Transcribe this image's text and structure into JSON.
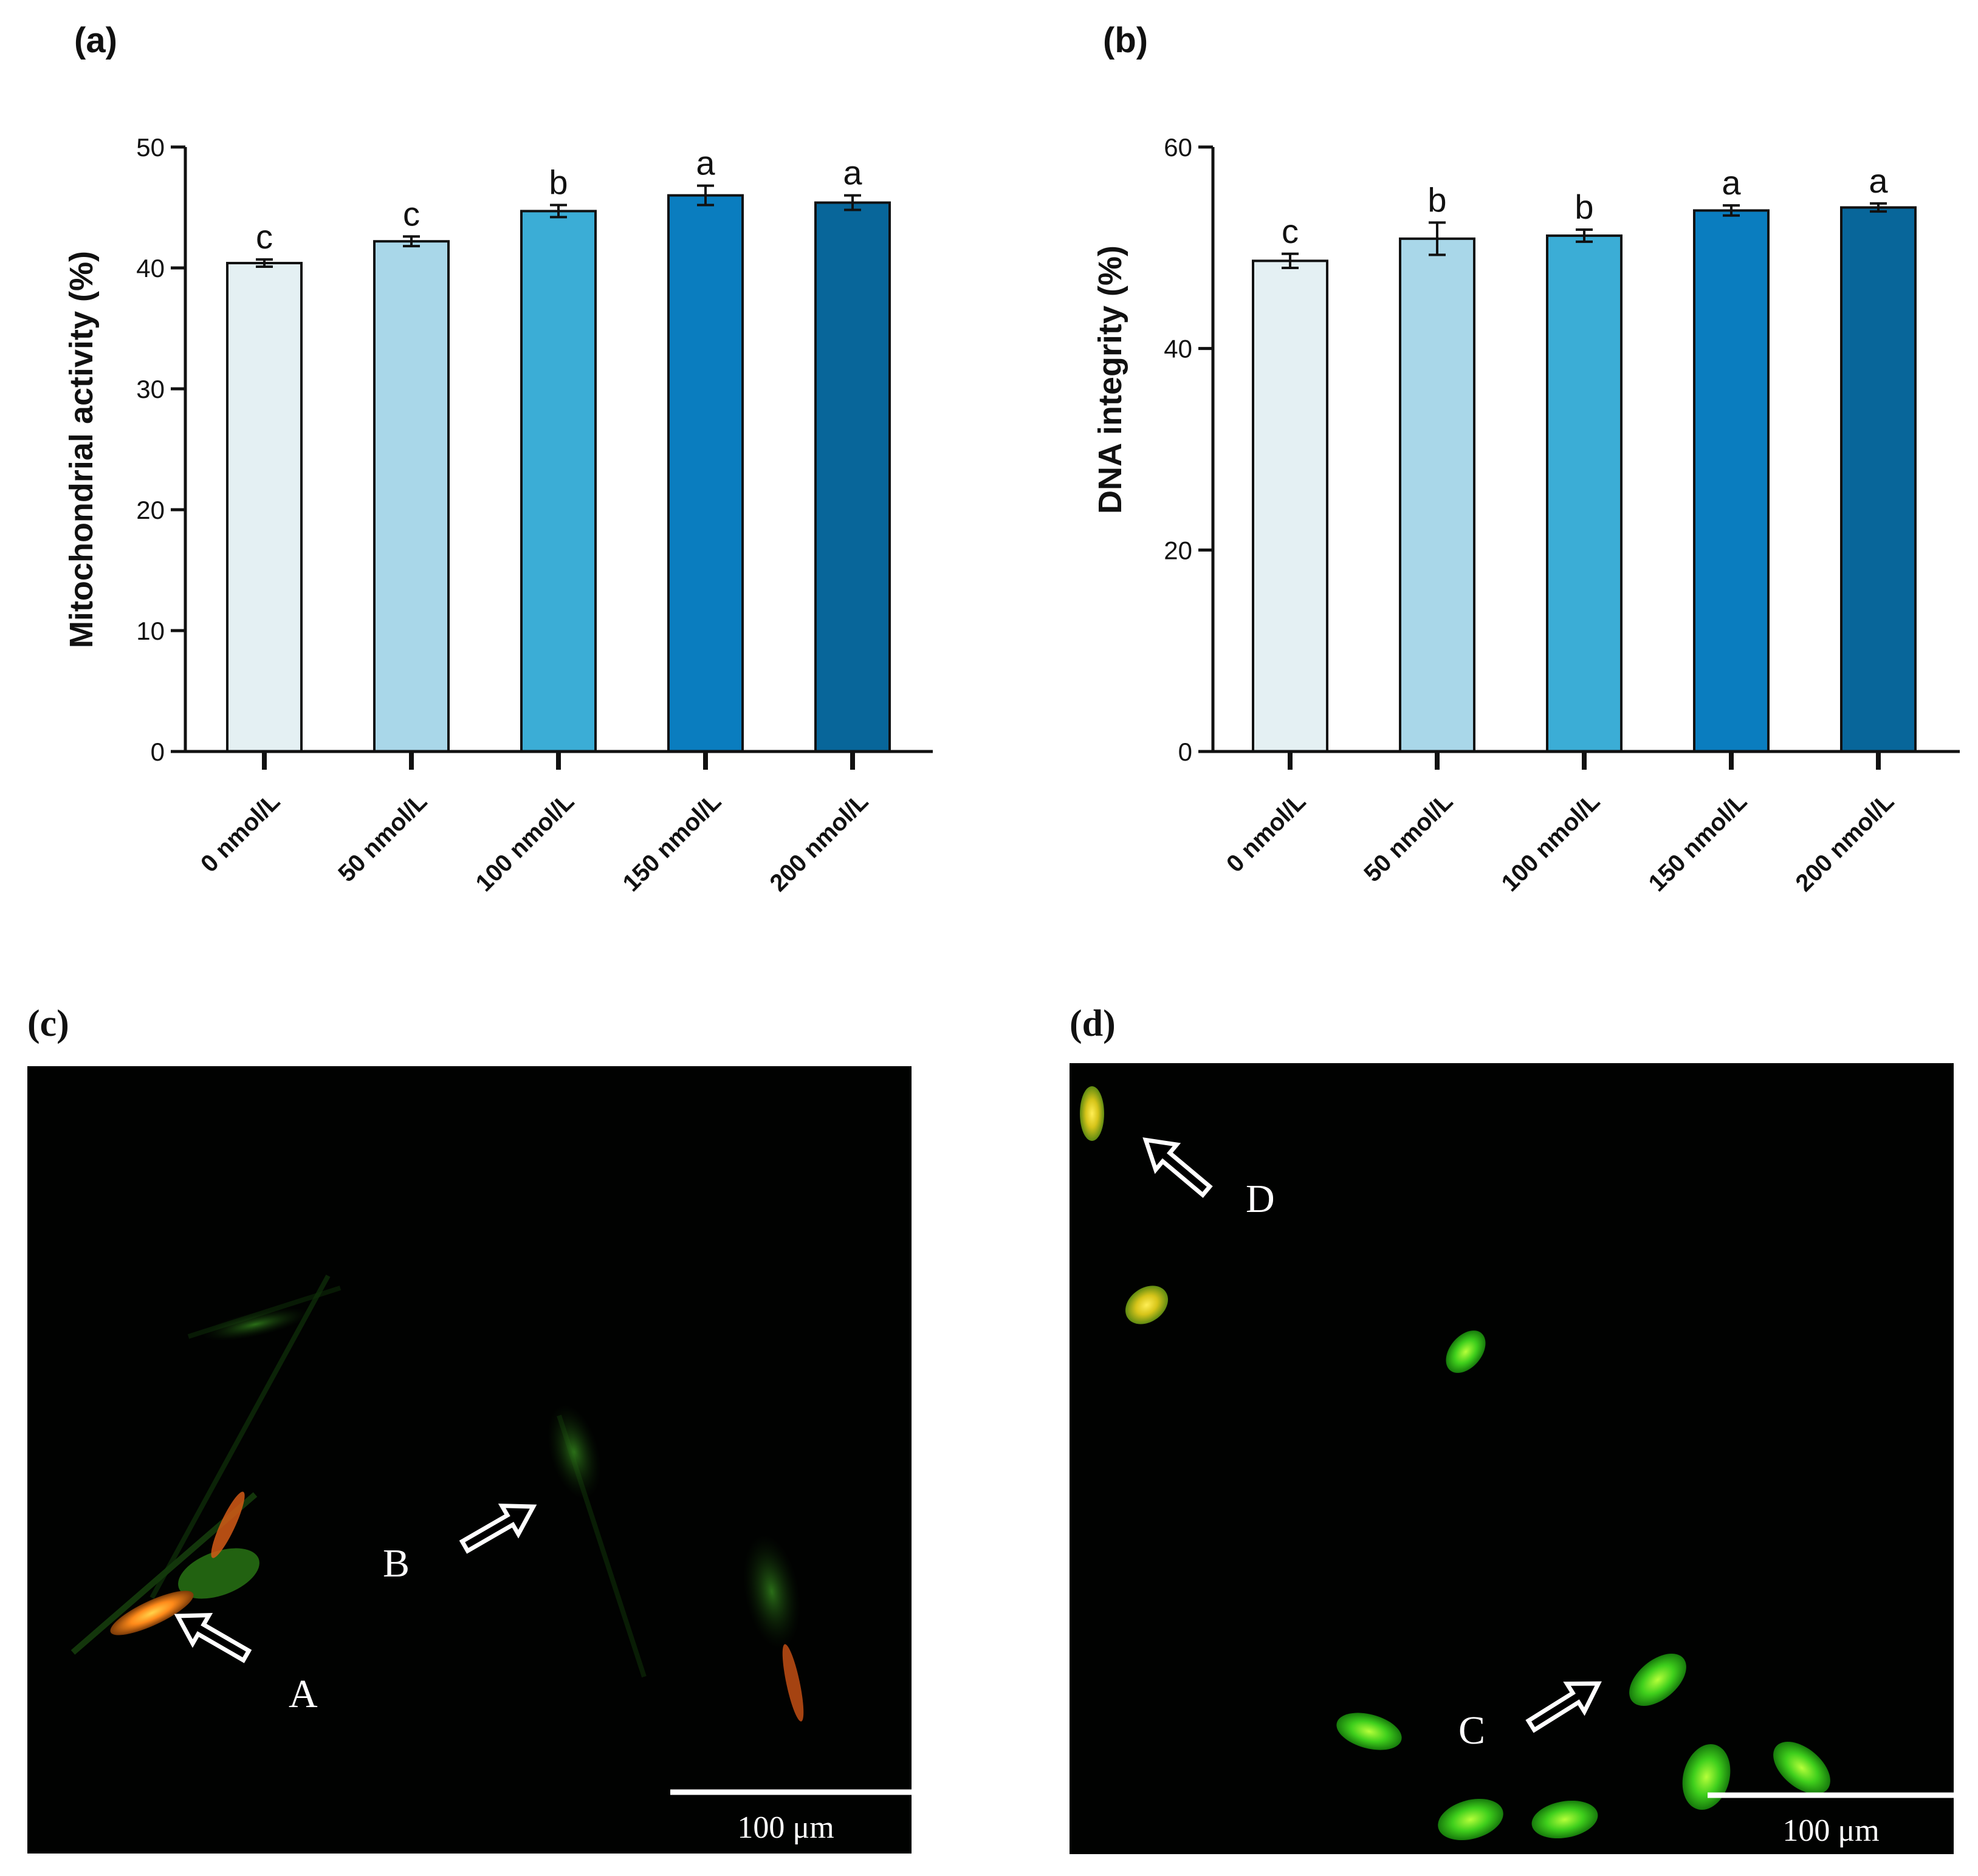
{
  "chart_data": [
    {
      "type": "bar",
      "panel_label": "(a)",
      "ylabel": "Mitochondrial activity  (%)",
      "ylim": [
        0,
        50
      ],
      "yticks": [
        "0",
        "10",
        "20",
        "30",
        "40",
        "50"
      ],
      "categories": [
        "0 nmol/L",
        "50 nmol/L",
        "100 nmol/L",
        "150 nmol/L",
        "200 nmol/L"
      ],
      "values": [
        40.4,
        42.2,
        44.7,
        46.0,
        45.4
      ],
      "errors": [
        0.3,
        0.4,
        0.5,
        0.8,
        0.6
      ],
      "significance": [
        "c",
        "c",
        "b",
        "a",
        "a"
      ],
      "colors": [
        "#e4f0f3",
        "#a9d7e9",
        "#3badd6",
        "#0a7dbf",
        "#08669a"
      ]
    },
    {
      "type": "bar",
      "panel_label": "(b)",
      "ylabel": "DNA integrity   (%)",
      "ylim": [
        0,
        60
      ],
      "yticks": [
        "0",
        "20",
        "40",
        "60"
      ],
      "categories": [
        "0 nmol/L",
        "50 nmol/L",
        "100 nmol/L",
        "150 nmol/L",
        "200 nmol/L"
      ],
      "values": [
        48.7,
        50.9,
        51.2,
        53.7,
        54.0
      ],
      "errors": [
        0.7,
        1.6,
        0.6,
        0.5,
        0.4
      ],
      "significance": [
        "c",
        "b",
        "b",
        "a",
        "a"
      ],
      "colors": [
        "#e4f0f3",
        "#a9d7e9",
        "#3badd6",
        "#0a7dbf",
        "#08669a"
      ]
    }
  ],
  "micrographs": {
    "c": {
      "panel_label": "(c)",
      "labels": [
        "A",
        "B"
      ],
      "scale": "100 μm"
    },
    "d": {
      "panel_label": "(d)",
      "labels": [
        "C",
        "D"
      ],
      "scale": "100 μm"
    }
  }
}
